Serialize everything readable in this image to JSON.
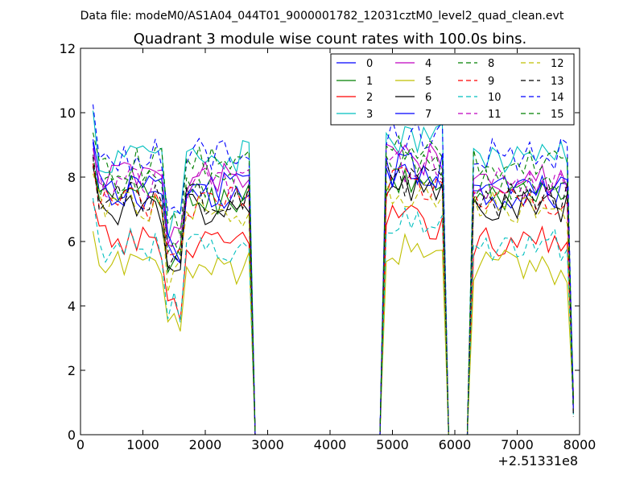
{
  "figure": {
    "supertitle": "Data file: modeM0/AS1A04_044T01_9000001782_12031cztM0_level2_quad_clean.evt"
  },
  "chart_data": {
    "type": "line",
    "title": "Quadrant 3 module wise count rates with 100.0s bins.",
    "xlabel": "",
    "ylabel": "",
    "x_offset_label": "+2.51331e8",
    "xlim": [
      0,
      8000
    ],
    "ylim": [
      0,
      12
    ],
    "xticks": [
      0,
      1000,
      2000,
      3000,
      4000,
      5000,
      6000,
      7000,
      8000
    ],
    "yticks": [
      0,
      2,
      4,
      6,
      8,
      10,
      12
    ],
    "legend_position": "top-right",
    "legend_columns": 4,
    "segments": [
      {
        "start": 200,
        "end": 2800
      },
      {
        "start": 4900,
        "end": 5900
      },
      {
        "start": 6300,
        "end": 7900
      }
    ],
    "series": [
      {
        "name": "0",
        "color": "#0000ff",
        "dash": "solid",
        "level": 7.5
      },
      {
        "name": "1",
        "color": "#007f00",
        "dash": "solid",
        "level": 7.3
      },
      {
        "name": "2",
        "color": "#ff0000",
        "dash": "solid",
        "level": 6.0
      },
      {
        "name": "3",
        "color": "#00bfbf",
        "dash": "solid",
        "level": 8.6
      },
      {
        "name": "4",
        "color": "#bf00bf",
        "dash": "solid",
        "level": 8.0
      },
      {
        "name": "5",
        "color": "#bfbf00",
        "dash": "solid",
        "level": 5.2
      },
      {
        "name": "6",
        "color": "#000000",
        "dash": "solid",
        "level": 7.0
      },
      {
        "name": "7",
        "color": "#0000ff",
        "dash": "solid",
        "level": 7.6
      },
      {
        "name": "8",
        "color": "#007f00",
        "dash": "dashed",
        "level": 7.7
      },
      {
        "name": "9",
        "color": "#ff0000",
        "dash": "dashed",
        "level": 7.2
      },
      {
        "name": "10",
        "color": "#00bfbf",
        "dash": "dashed",
        "level": 5.9
      },
      {
        "name": "11",
        "color": "#bf00bf",
        "dash": "dashed",
        "level": 7.8
      },
      {
        "name": "12",
        "color": "#bfbf00",
        "dash": "dashed",
        "level": 7.0
      },
      {
        "name": "13",
        "color": "#000000",
        "dash": "dashed",
        "level": 7.3
      },
      {
        "name": "14",
        "color": "#0000ff",
        "dash": "dashed",
        "level": 8.7
      },
      {
        "name": "15",
        "color": "#007f00",
        "dash": "dashed",
        "level": 8.4
      }
    ]
  }
}
